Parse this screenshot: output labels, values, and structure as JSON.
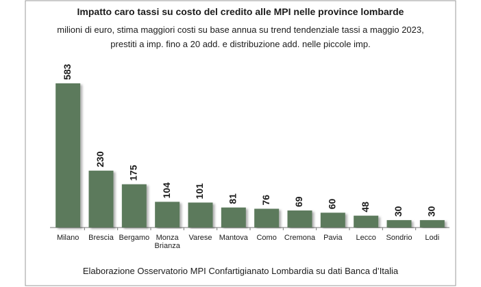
{
  "chart_data": {
    "type": "bar",
    "title": "Impatto caro tassi su costo del credito alle MPI nelle province lombarde",
    "subtitle": [
      "milioni di euro, stima maggiori costi su base annua su trend tendenziale tassi a maggio 2023,",
      "prestiti a imp. fino a 20 add. e distribuzione add. nelle piccole imp."
    ],
    "categories": [
      "Milano",
      "Brescia",
      "Bergamo",
      "Monza Brianza",
      "Varese",
      "Mantova",
      "Como",
      "Cremona",
      "Pavia",
      "Lecco",
      "Sondrio",
      "Lodi"
    ],
    "values": [
      583,
      230,
      175,
      104,
      101,
      81,
      76,
      69,
      60,
      48,
      30,
      30
    ],
    "color": "#5b7a5c",
    "source": "Elaborazione Osservatorio MPI Confartigianato Lombardia su dati Banca d’Italia"
  }
}
